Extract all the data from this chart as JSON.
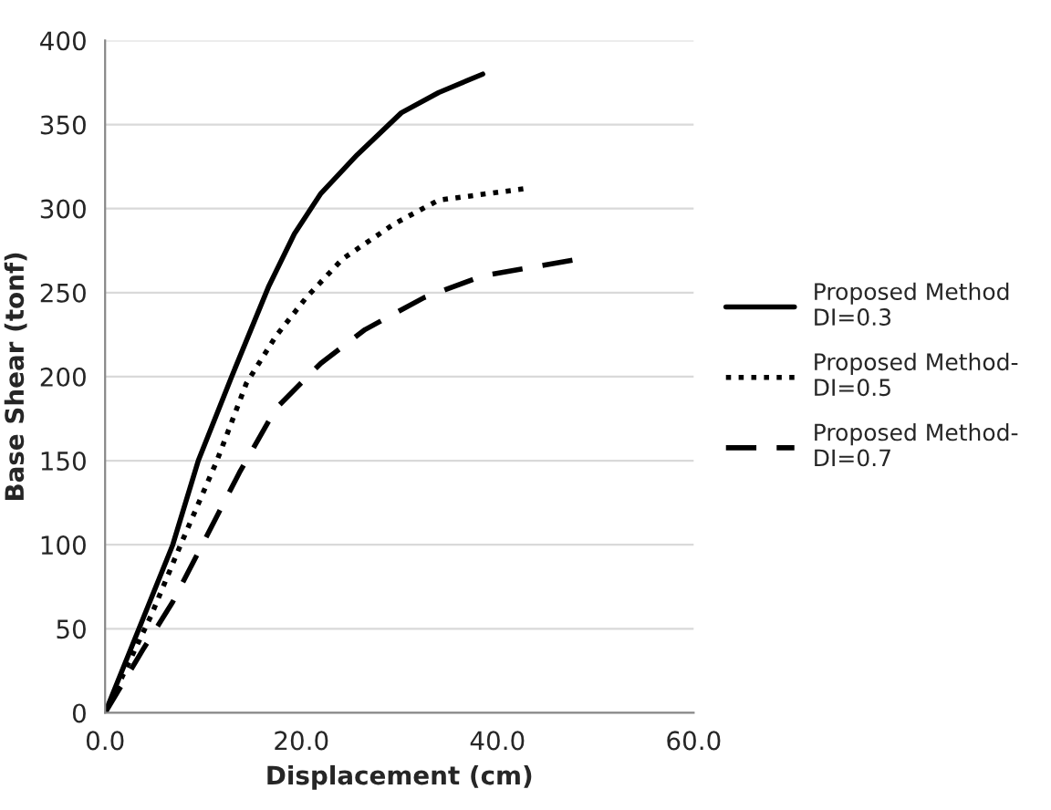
{
  "chart_data": {
    "type": "line",
    "xlabel": "Displacement (cm)",
    "ylabel": "Base Shear (tonf)",
    "xlim": [
      0,
      60
    ],
    "xticks": [
      {
        "value": 0,
        "label": "0.0"
      },
      {
        "value": 20,
        "label": "20.0"
      },
      {
        "value": 40,
        "label": "40.0"
      },
      {
        "value": 60,
        "label": "60.0"
      }
    ],
    "ylim": [
      0,
      400
    ],
    "yticks": [
      0,
      50,
      100,
      150,
      200,
      250,
      300,
      350,
      400
    ],
    "grid": "y",
    "legend": "right",
    "series": [
      {
        "name": "Proposed Method DI=0.3",
        "color": "#000000",
        "line_style": "solid",
        "x": [
          0,
          6.9,
          9.5,
          12.9,
          16.7,
          19.3,
          22,
          25.7,
          30.2,
          34,
          38.5
        ],
        "values": [
          0,
          100,
          150,
          200,
          254,
          285,
          309,
          332,
          357,
          369,
          380
        ]
      },
      {
        "name": "Proposed Method-DI=0.5",
        "color": "#000000",
        "line_style": "dotted",
        "x": [
          0,
          4.7,
          7.7,
          11.4,
          14.4,
          17.4,
          20.5,
          24.2,
          29.5,
          34,
          43
        ],
        "values": [
          0,
          58,
          100,
          150,
          196,
          224,
          247,
          270,
          291,
          305,
          312
        ]
      },
      {
        "name": "Proposed Method-DI=0.7",
        "color": "#000000",
        "line_style": "dashed",
        "x": [
          0,
          3.9,
          6.9,
          9.9,
          13.7,
          17.4,
          22,
          26.5,
          32.5,
          38.5,
          48.3
        ],
        "values": [
          0,
          38,
          66,
          100,
          143,
          181,
          208,
          228,
          247,
          260,
          270
        ]
      }
    ]
  }
}
